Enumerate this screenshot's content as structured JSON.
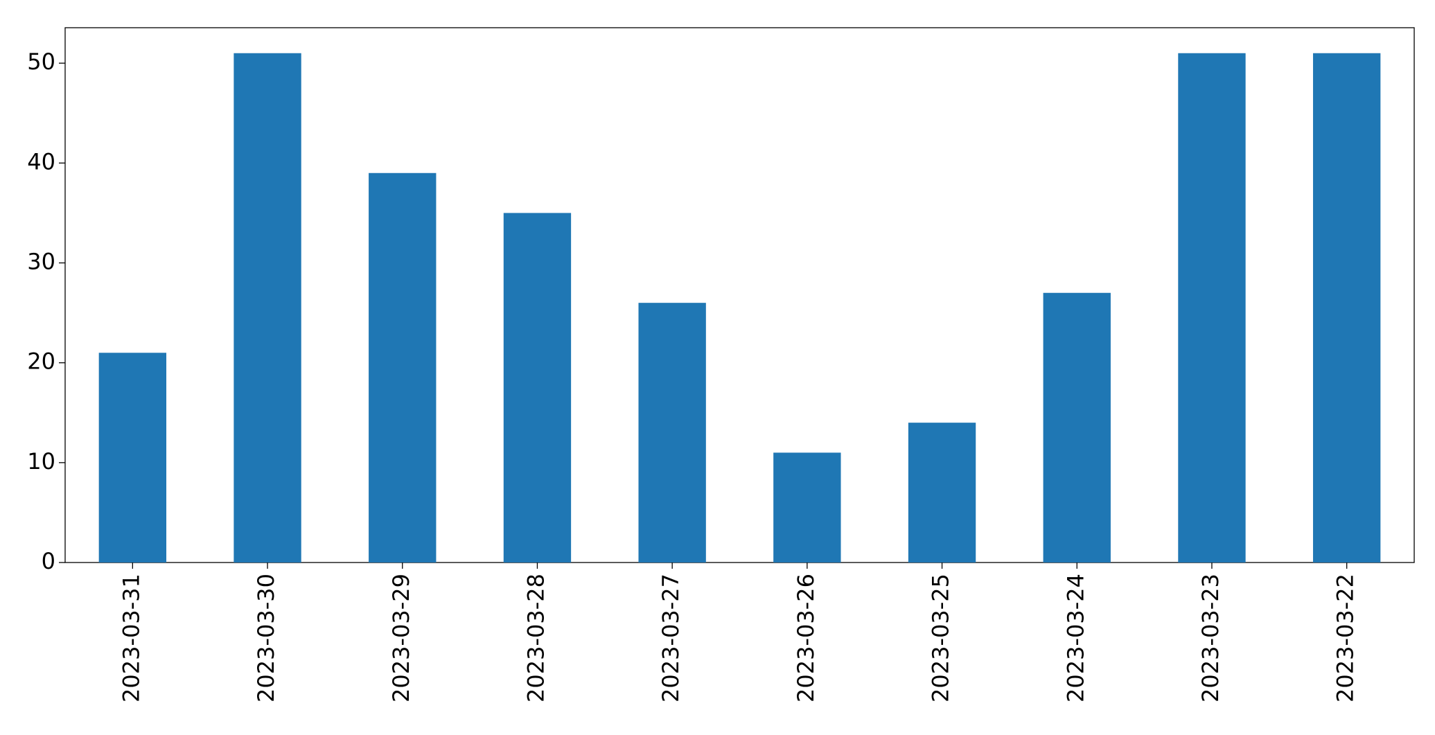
{
  "chart_data": {
    "type": "bar",
    "categories": [
      "2023-03-31",
      "2023-03-30",
      "2023-03-29",
      "2023-03-28",
      "2023-03-27",
      "2023-03-26",
      "2023-03-25",
      "2023-03-24",
      "2023-03-23",
      "2023-03-22"
    ],
    "values": [
      21,
      51,
      39,
      35,
      26,
      11,
      14,
      27,
      51,
      51
    ],
    "color": "#1f77b4",
    "ylim": [
      0,
      53.55
    ],
    "yticks": [
      0,
      10,
      20,
      30,
      40,
      50
    ],
    "grid": false
  }
}
